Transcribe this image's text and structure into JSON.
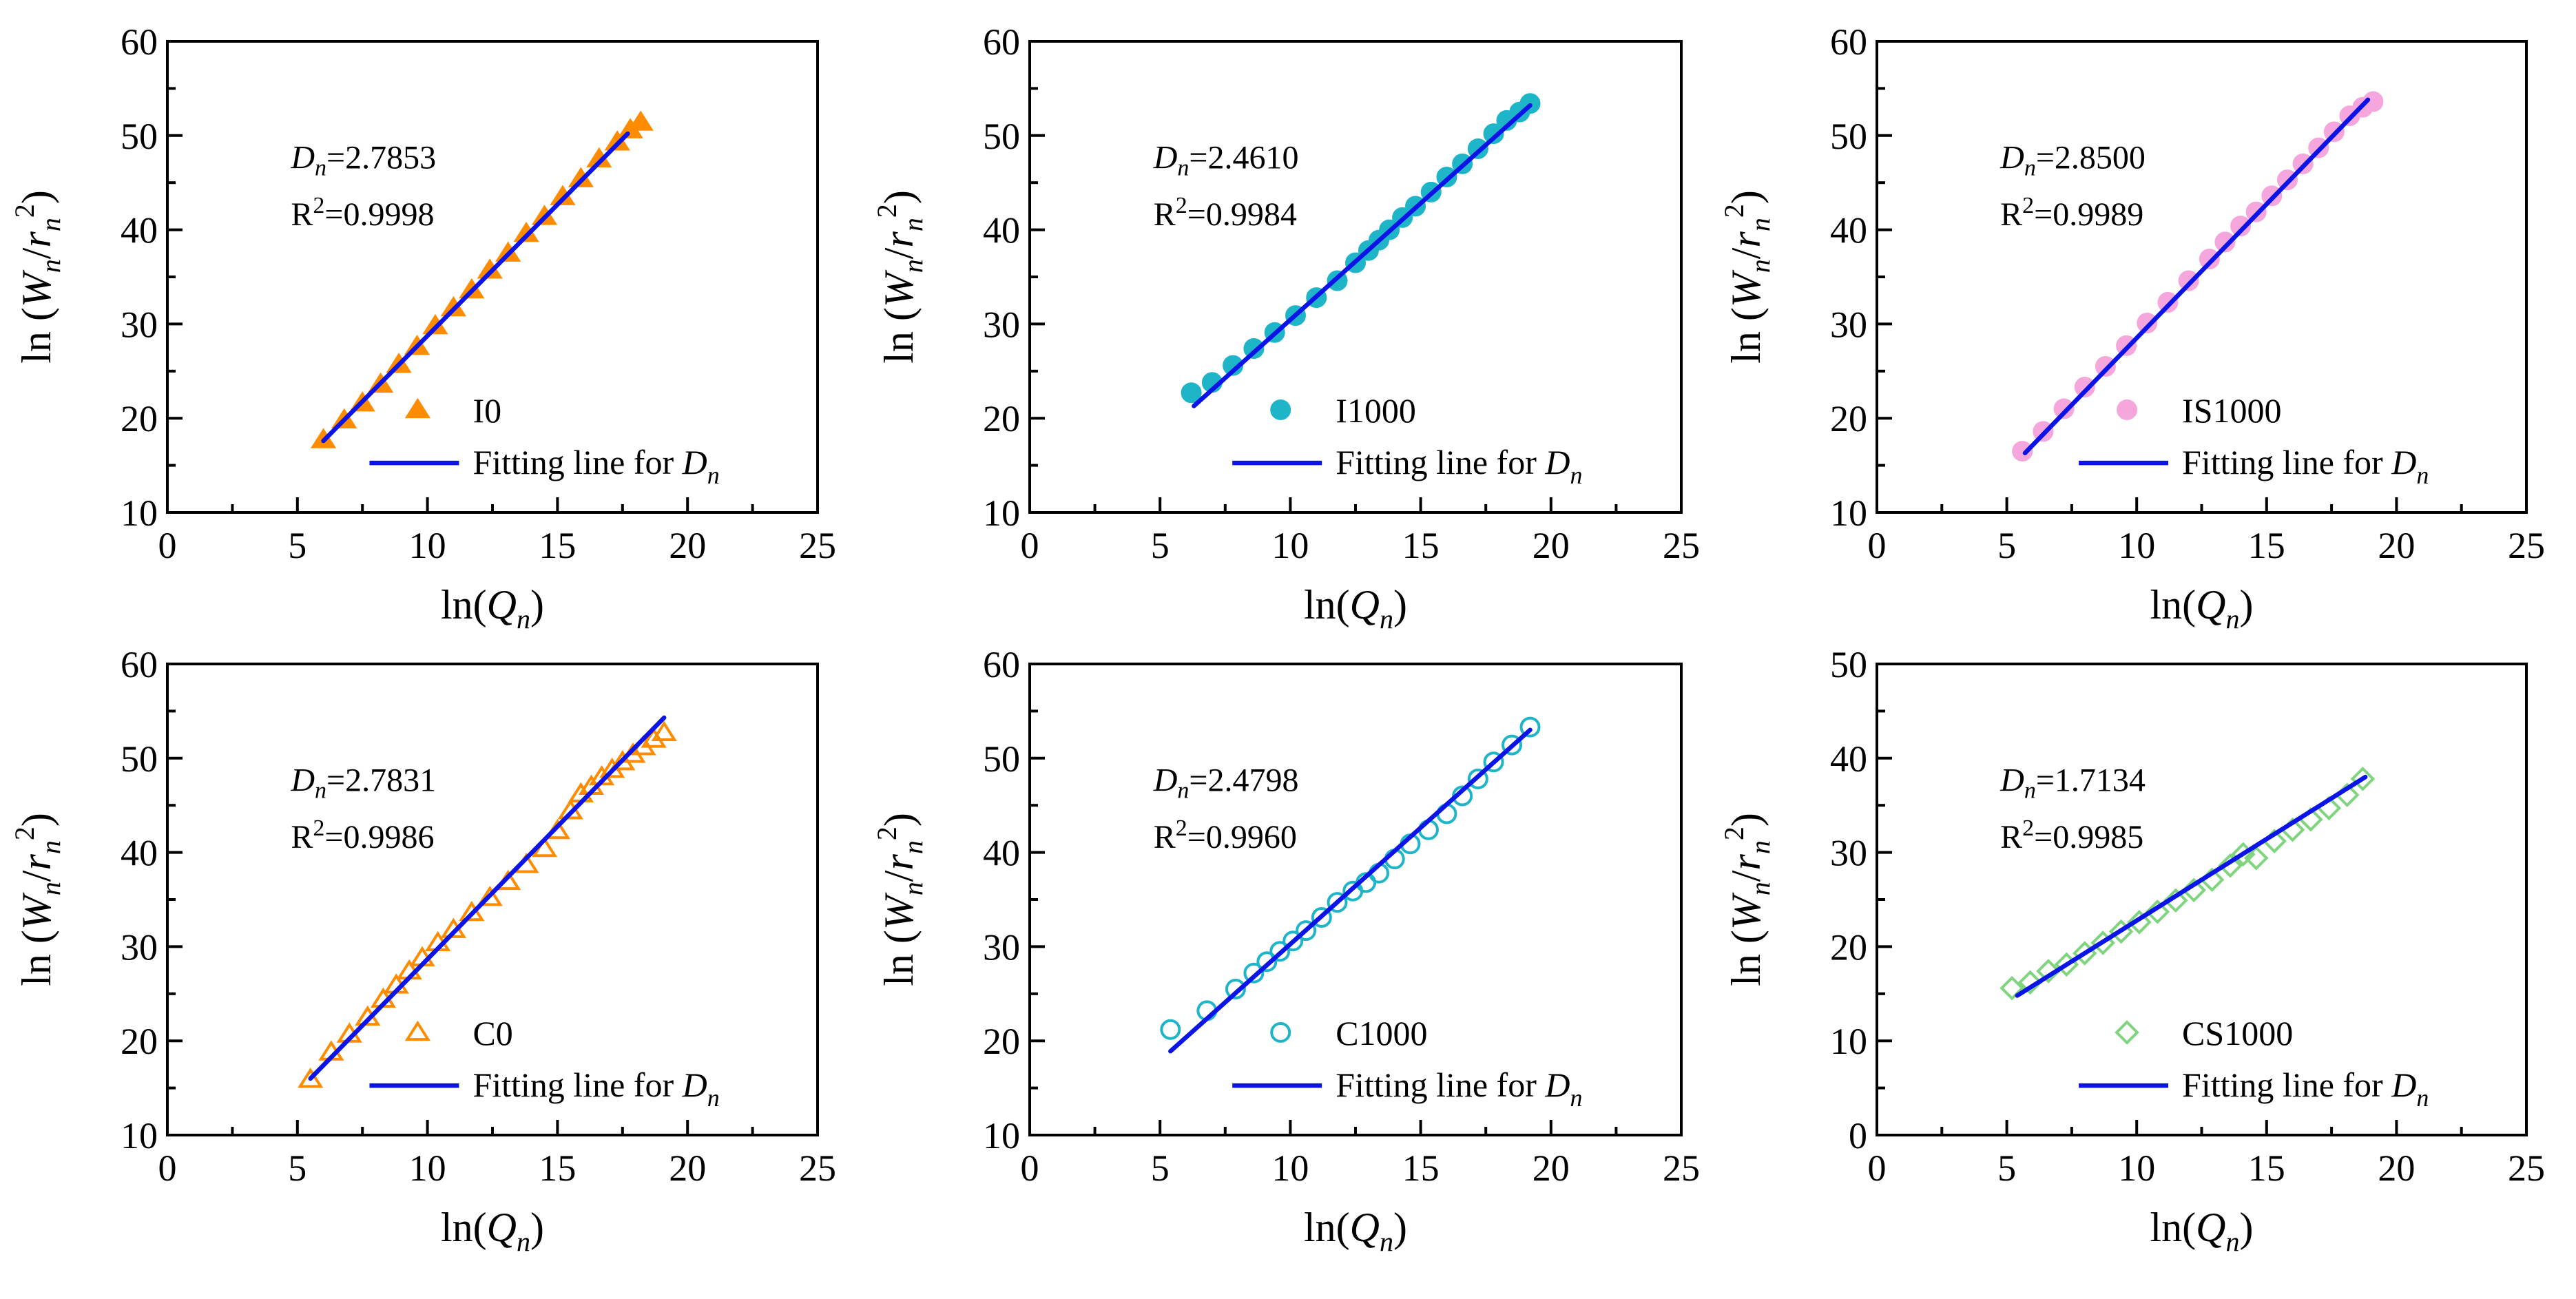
{
  "colors": {
    "fit_line": "#0a14e6",
    "orange": "#ff8c00",
    "cyan": "#1fb5c8",
    "pink": "#f5a6dc",
    "green": "#7ed57e"
  },
  "chart_data": [
    {
      "type": "scatter",
      "id": "I0",
      "marker": "triangle-filled",
      "color": "#ff8c00",
      "xlabel": {
        "base": "ln(",
        "var": "Q",
        "sub": "n",
        "tail": ")"
      },
      "ylabel": {
        "base": "ln (",
        "var": "W",
        "sub": "n",
        "mid": "/",
        "var2": "r",
        "sub2": "n",
        "sup": "2",
        "tail": ")"
      },
      "xlim": [
        0,
        25
      ],
      "ylim": [
        10,
        60
      ],
      "xticks": [
        0,
        5,
        10,
        15,
        20,
        25
      ],
      "yticks": [
        10,
        20,
        30,
        40,
        50,
        60
      ],
      "annotation": {
        "dn_symbol": "D",
        "dn_sub": "n",
        "dn_value": "=2.7853",
        "r2_prefix": "R",
        "r2_sup": "2",
        "r2_value": "=0.9998"
      },
      "legend": {
        "series_label": "I0",
        "fit_prefix": "Fitting line for ",
        "fit_var": "D",
        "fit_sub": "n"
      },
      "fit": {
        "x": [
          6.0,
          17.7
        ],
        "y": [
          17.6,
          50.2
        ]
      },
      "points": {
        "x": [
          6.0,
          6.8,
          7.5,
          8.2,
          8.9,
          9.6,
          10.3,
          11.0,
          11.7,
          12.4,
          13.1,
          13.8,
          14.5,
          15.2,
          15.9,
          16.6,
          17.3,
          17.8,
          18.2
        ],
        "y": [
          17.7,
          19.8,
          21.6,
          23.6,
          25.7,
          27.6,
          29.8,
          31.7,
          33.6,
          35.7,
          37.5,
          39.6,
          41.4,
          43.5,
          45.4,
          47.5,
          49.3,
          50.6,
          51.4
        ]
      }
    },
    {
      "type": "scatter",
      "id": "I1000",
      "marker": "circle-filled",
      "color": "#1fb5c8",
      "xlabel": {
        "base": "ln(",
        "var": "Q",
        "sub": "n",
        "tail": ")"
      },
      "ylabel": {
        "base": "ln (",
        "var": "W",
        "sub": "n",
        "mid": "/",
        "var2": "r",
        "sub2": "n",
        "sup": "2",
        "tail": ")"
      },
      "xlim": [
        0,
        25
      ],
      "ylim": [
        10,
        60
      ],
      "xticks": [
        0,
        5,
        10,
        15,
        20,
        25
      ],
      "yticks": [
        10,
        20,
        30,
        40,
        50,
        60
      ],
      "annotation": {
        "dn_symbol": "D",
        "dn_sub": "n",
        "dn_value": "=2.4610",
        "r2_prefix": "R",
        "r2_sup": "2",
        "r2_value": "=0.9984"
      },
      "legend": {
        "series_label": "I1000",
        "fit_prefix": "Fitting line for ",
        "fit_var": "D",
        "fit_sub": "n"
      },
      "fit": {
        "x": [
          6.3,
          19.2
        ],
        "y": [
          21.3,
          53.2
        ]
      },
      "points": {
        "x": [
          6.2,
          7.0,
          7.8,
          8.6,
          9.4,
          10.2,
          11.0,
          11.8,
          12.5,
          13.0,
          13.4,
          13.8,
          14.3,
          14.8,
          15.4,
          16.0,
          16.6,
          17.2,
          17.8,
          18.3,
          18.8,
          19.2
        ],
        "y": [
          22.7,
          23.8,
          25.6,
          27.4,
          29.1,
          30.9,
          32.8,
          34.6,
          36.5,
          37.8,
          38.9,
          40.0,
          41.3,
          42.5,
          44.0,
          45.6,
          47.0,
          48.6,
          50.2,
          51.6,
          52.5,
          53.4
        ]
      }
    },
    {
      "type": "scatter",
      "id": "IS1000",
      "marker": "circle-filled",
      "color": "#f5a6dc",
      "xlabel": {
        "base": "ln(",
        "var": "Q",
        "sub": "n",
        "tail": ")"
      },
      "ylabel": {
        "base": "ln (",
        "var": "W",
        "sub": "n",
        "mid": "/",
        "var2": "r",
        "sub2": "n",
        "sup": "2",
        "tail": ")"
      },
      "xlim": [
        0,
        25
      ],
      "ylim": [
        10,
        60
      ],
      "xticks": [
        0,
        5,
        10,
        15,
        20,
        25
      ],
      "yticks": [
        10,
        20,
        30,
        40,
        50,
        60
      ],
      "annotation": {
        "dn_symbol": "D",
        "dn_sub": "n",
        "dn_value": "=2.8500",
        "r2_prefix": "R",
        "r2_sup": "2",
        "r2_value": "=0.9989"
      },
      "legend": {
        "series_label": "IS1000",
        "fit_prefix": "Fitting line for ",
        "fit_var": "D",
        "fit_sub": "n"
      },
      "fit": {
        "x": [
          5.7,
          18.9
        ],
        "y": [
          16.3,
          53.8
        ]
      },
      "points": {
        "x": [
          5.6,
          6.4,
          7.2,
          8.0,
          8.8,
          9.6,
          10.4,
          11.2,
          12.0,
          12.8,
          13.4,
          14.0,
          14.6,
          15.2,
          15.8,
          16.4,
          17.0,
          17.6,
          18.2,
          18.7,
          19.1
        ],
        "y": [
          16.5,
          18.6,
          21.0,
          23.3,
          25.5,
          27.7,
          30.1,
          32.3,
          34.6,
          36.9,
          38.7,
          40.4,
          41.9,
          43.6,
          45.3,
          47.0,
          48.7,
          50.4,
          52.1,
          53.0,
          53.6
        ]
      }
    },
    {
      "type": "scatter",
      "id": "C0",
      "marker": "triangle-open",
      "color": "#ff8c00",
      "xlabel": {
        "base": "ln(",
        "var": "Q",
        "sub": "n",
        "tail": ")"
      },
      "ylabel": {
        "base": "ln (",
        "var": "W",
        "sub": "n",
        "mid": "/",
        "var2": "r",
        "sub2": "n",
        "sup": "2",
        "tail": ")"
      },
      "xlim": [
        0,
        25
      ],
      "ylim": [
        10,
        60
      ],
      "xticks": [
        0,
        5,
        10,
        15,
        20,
        25
      ],
      "yticks": [
        10,
        20,
        30,
        40,
        50,
        60
      ],
      "annotation": {
        "dn_symbol": "D",
        "dn_sub": "n",
        "dn_value": "=2.7831",
        "r2_prefix": "R",
        "r2_sup": "2",
        "r2_value": "=0.9986"
      },
      "legend": {
        "series_label": "C0",
        "fit_prefix": "Fitting line for ",
        "fit_var": "D",
        "fit_sub": "n"
      },
      "fit": {
        "x": [
          5.5,
          19.1
        ],
        "y": [
          16.0,
          54.3
        ]
      },
      "points": {
        "x": [
          5.5,
          6.3,
          7.0,
          7.7,
          8.3,
          8.8,
          9.3,
          9.8,
          10.4,
          11.0,
          11.7,
          12.4,
          13.1,
          13.8,
          14.5,
          15.0,
          15.5,
          15.9,
          16.3,
          16.7,
          17.1,
          17.5,
          17.9,
          18.3,
          18.7,
          19.1
        ],
        "y": [
          15.9,
          18.8,
          20.7,
          22.5,
          24.4,
          25.9,
          27.4,
          28.8,
          30.4,
          31.8,
          33.6,
          35.2,
          36.9,
          38.7,
          40.4,
          42.3,
          44.4,
          46.2,
          47.0,
          48.0,
          48.8,
          49.6,
          50.4,
          51.2,
          52.0,
          52.7
        ]
      }
    },
    {
      "type": "scatter",
      "id": "C1000",
      "marker": "circle-open",
      "color": "#1fb5c8",
      "xlabel": {
        "base": "ln(",
        "var": "Q",
        "sub": "n",
        "tail": ")"
      },
      "ylabel": {
        "base": "ln (",
        "var": "W",
        "sub": "n",
        "mid": "/",
        "var2": "r",
        "sub2": "n",
        "sup": "2",
        "tail": ")"
      },
      "xlim": [
        0,
        25
      ],
      "ylim": [
        10,
        60
      ],
      "xticks": [
        0,
        5,
        10,
        15,
        20,
        25
      ],
      "yticks": [
        10,
        20,
        30,
        40,
        50,
        60
      ],
      "annotation": {
        "dn_symbol": "D",
        "dn_sub": "n",
        "dn_value": "=2.4798",
        "r2_prefix": "R",
        "r2_sup": "2",
        "r2_value": "=0.9960"
      },
      "legend": {
        "series_label": "C1000",
        "fit_prefix": "Fitting line for ",
        "fit_var": "D",
        "fit_sub": "n"
      },
      "fit": {
        "x": [
          5.4,
          19.2
        ],
        "y": [
          18.9,
          53.0
        ]
      },
      "points": {
        "x": [
          5.4,
          6.8,
          7.9,
          8.6,
          9.1,
          9.6,
          10.1,
          10.6,
          11.2,
          11.8,
          12.4,
          12.9,
          13.4,
          14.0,
          14.6,
          15.3,
          16.0,
          16.6,
          17.2,
          17.8,
          18.5,
          19.2
        ],
        "y": [
          21.2,
          23.2,
          25.5,
          27.2,
          28.4,
          29.5,
          30.6,
          31.7,
          33.1,
          34.7,
          35.9,
          36.8,
          37.8,
          39.3,
          40.9,
          42.4,
          44.1,
          46.0,
          47.8,
          49.6,
          51.4,
          53.3
        ]
      }
    },
    {
      "type": "scatter",
      "id": "CS1000",
      "marker": "diamond-open",
      "color": "#7ed57e",
      "xlabel": {
        "base": "ln(",
        "var": "Q",
        "sub": "n",
        "tail": ")"
      },
      "ylabel": {
        "base": "ln (",
        "var": "W",
        "sub": "n",
        "mid": "/",
        "var2": "r",
        "sub2": "n",
        "sup": "2",
        "tail": ")"
      },
      "xlim": [
        0,
        25
      ],
      "ylim": [
        0,
        50
      ],
      "xticks": [
        0,
        5,
        10,
        15,
        20,
        25
      ],
      "yticks": [
        0,
        10,
        20,
        30,
        40,
        50
      ],
      "annotation": {
        "dn_symbol": "D",
        "dn_sub": "n",
        "dn_value": "=1.7134",
        "r2_prefix": "R",
        "r2_sup": "2",
        "r2_value": "=0.9985"
      },
      "legend": {
        "series_label": "CS1000",
        "fit_prefix": "Fitting line for ",
        "fit_var": "D",
        "fit_sub": "n"
      },
      "fit": {
        "x": [
          5.4,
          18.8
        ],
        "y": [
          14.8,
          38.0
        ]
      },
      "points": {
        "x": [
          5.2,
          5.9,
          6.6,
          7.3,
          8.0,
          8.7,
          9.4,
          10.1,
          10.8,
          11.5,
          12.2,
          12.9,
          13.6,
          14.1,
          14.6,
          15.3,
          16.0,
          16.7,
          17.4,
          18.1,
          18.7
        ],
        "y": [
          15.6,
          16.2,
          17.4,
          18.1,
          19.3,
          20.4,
          21.6,
          22.6,
          23.7,
          24.9,
          26.0,
          27.1,
          28.6,
          29.8,
          29.4,
          31.2,
          32.4,
          33.5,
          34.7,
          36.1,
          37.8
        ]
      }
    }
  ]
}
